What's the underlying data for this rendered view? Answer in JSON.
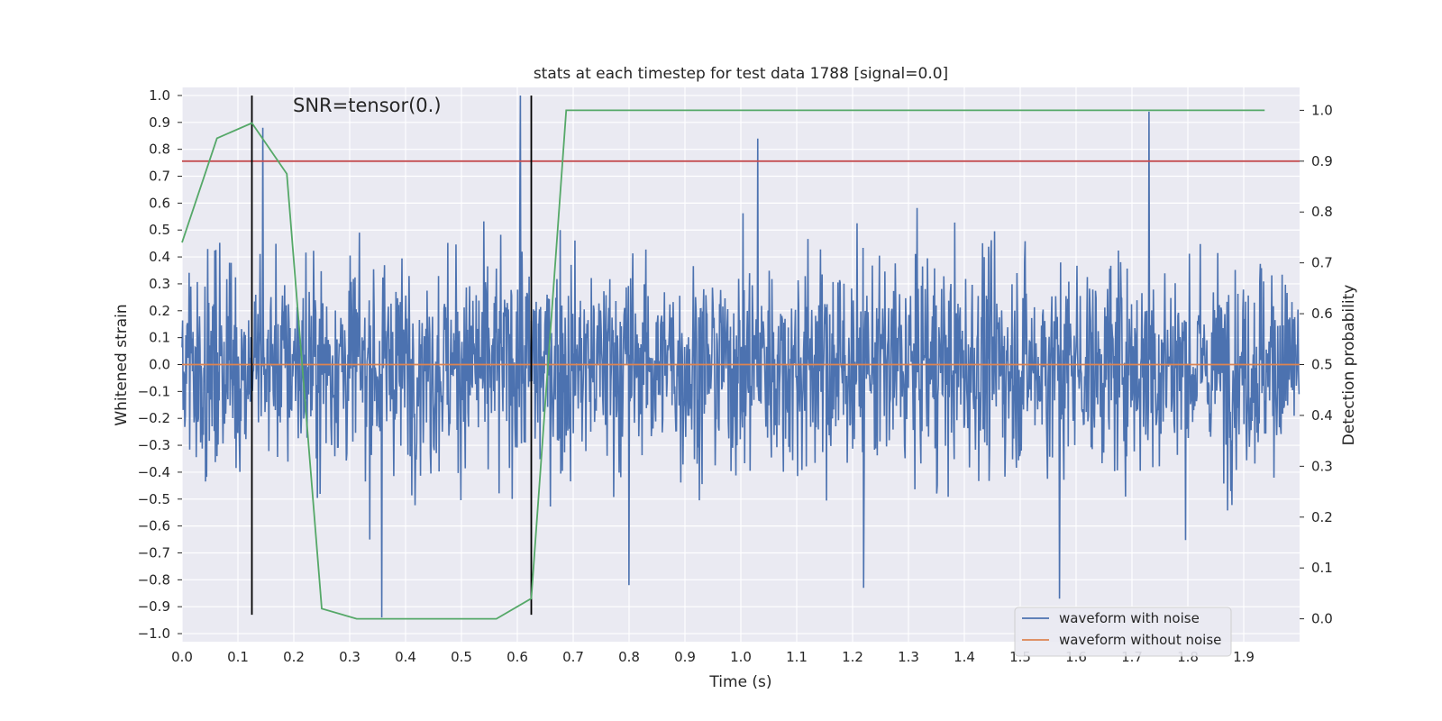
{
  "chart_data": {
    "type": "line",
    "title": "stats at each timestep for test data 1788 [signal=0.0]",
    "xlabel": "Time (s)",
    "ylabel": "Whitened strain",
    "y2label": "Detection probability",
    "annotation": "SNR=tensor(0.)",
    "xlim": [
      0.0,
      2.0
    ],
    "ylim": [
      -1.03,
      1.03
    ],
    "y2lim": [
      -0.045,
      1.045
    ],
    "x_ticks": [
      "0.0",
      "0.1",
      "0.2",
      "0.3",
      "0.4",
      "0.5",
      "0.6",
      "0.7",
      "0.8",
      "0.9",
      "1.0",
      "1.1",
      "1.2",
      "1.3",
      "1.4",
      "1.5",
      "1.6",
      "1.7",
      "1.8",
      "1.9"
    ],
    "y_ticks": [
      "1.0",
      "0.9",
      "0.8",
      "0.7",
      "0.6",
      "0.5",
      "0.4",
      "0.3",
      "0.2",
      "0.1",
      "0.0",
      "−0.1",
      "−0.2",
      "−0.3",
      "−0.4",
      "−0.5",
      "−0.6",
      "−0.7",
      "−0.8",
      "−0.9",
      "−1.0"
    ],
    "y2_ticks": [
      "1.0",
      "0.9",
      "0.8",
      "0.7",
      "0.6",
      "0.5",
      "0.4",
      "0.3",
      "0.2",
      "0.1",
      "0.0"
    ],
    "grid": true,
    "legend_placement": "bottom-right",
    "colors": {
      "noise": "#4c72b0",
      "clean": "#dd8452",
      "probability": "#55a868",
      "threshold": "#c44e52",
      "markers": "#000000",
      "background": "#eaeaf2",
      "grid": "#ffffff"
    },
    "series": [
      {
        "name": "waveform with noise",
        "axis": "left",
        "description_points": 2048,
        "noise_amplitude_range": [
          -0.95,
          0.95
        ],
        "peaks": [
          {
            "x": 0.357,
            "y": -0.94
          },
          {
            "x": 0.605,
            "y": 1.0
          },
          {
            "x": 1.03,
            "y": 0.84
          },
          {
            "x": 1.57,
            "y": -0.87
          },
          {
            "x": 1.73,
            "y": 0.94
          },
          {
            "x": 0.145,
            "y": 0.88
          },
          {
            "x": 1.22,
            "y": -0.83
          },
          {
            "x": 0.8,
            "y": -0.82
          }
        ]
      },
      {
        "name": "waveform without noise",
        "axis": "left",
        "x": [
          0.0,
          2.0
        ],
        "y": [
          0.0,
          0.0
        ]
      },
      {
        "name": "",
        "axis": "right",
        "x": [
          0.0,
          0.0625,
          0.125,
          0.1875,
          0.25,
          0.3125,
          0.375,
          0.4375,
          0.5,
          0.5625,
          0.625,
          0.6875,
          0.75,
          1.0,
          1.5,
          1.9375
        ],
        "y": [
          0.74,
          0.945,
          0.975,
          0.875,
          0.02,
          0.0,
          0.0,
          0.0,
          0.0,
          0.0,
          0.04,
          1.0,
          1.0,
          1.0,
          1.0,
          1.0
        ]
      }
    ],
    "threshold_line_y2": 0.9,
    "vertical_markers": [
      {
        "x": 0.125,
        "y_from": -0.93,
        "y_to": 1.0
      },
      {
        "x": 0.625,
        "y_from": -0.93,
        "y_to": 1.0
      }
    ]
  }
}
